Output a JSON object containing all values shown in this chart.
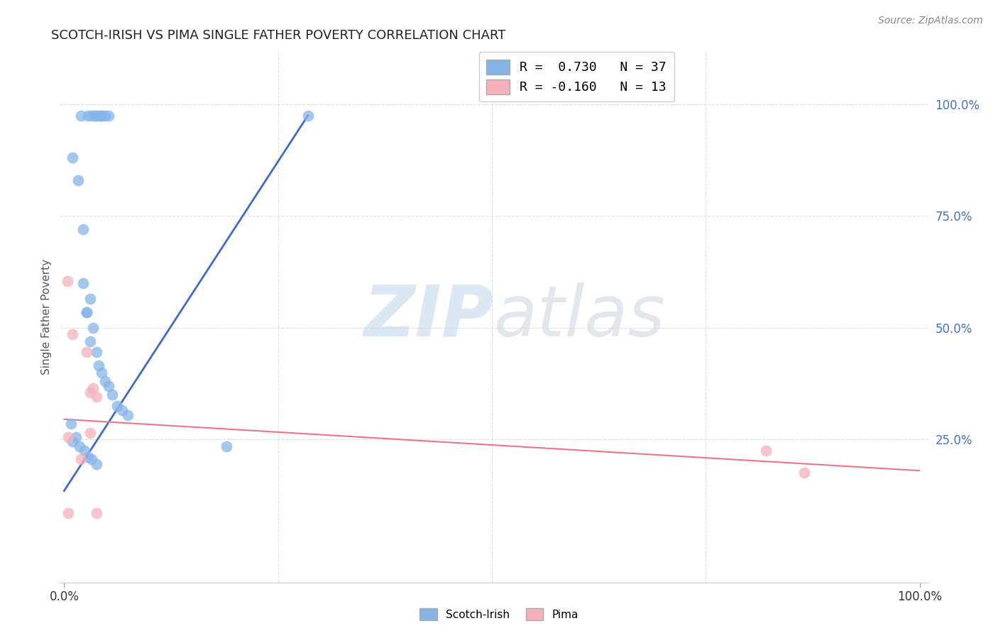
{
  "title": "SCOTCH-IRISH VS PIMA SINGLE FATHER POVERTY CORRELATION CHART",
  "source": "Source: ZipAtlas.com",
  "ylabel": "Single Father Poverty",
  "right_yticks": [
    "100.0%",
    "75.0%",
    "50.0%",
    "25.0%"
  ],
  "right_ytick_vals": [
    1.0,
    0.75,
    0.5,
    0.25
  ],
  "legend_blue": "R =  0.730   N = 37",
  "legend_pink": "R = -0.160   N = 13",
  "scotch_irish_x": [
    0.02,
    0.028,
    0.032,
    0.036,
    0.038,
    0.042,
    0.044,
    0.048,
    0.052,
    0.01,
    0.016,
    0.022,
    0.022,
    0.026,
    0.026,
    0.03,
    0.03,
    0.034,
    0.038,
    0.04,
    0.044,
    0.048,
    0.052,
    0.056,
    0.062,
    0.068,
    0.074,
    0.008,
    0.01,
    0.014,
    0.018,
    0.024,
    0.028,
    0.032,
    0.038,
    0.19,
    0.285
  ],
  "scotch_irish_y": [
    0.975,
    0.975,
    0.975,
    0.975,
    0.975,
    0.975,
    0.975,
    0.975,
    0.975,
    0.88,
    0.83,
    0.72,
    0.6,
    0.535,
    0.535,
    0.565,
    0.47,
    0.5,
    0.445,
    0.415,
    0.4,
    0.38,
    0.37,
    0.35,
    0.325,
    0.315,
    0.305,
    0.285,
    0.245,
    0.255,
    0.235,
    0.225,
    0.21,
    0.205,
    0.195,
    0.235,
    0.975
  ],
  "pima_x": [
    0.004,
    0.01,
    0.02,
    0.026,
    0.03,
    0.034,
    0.038,
    0.03,
    0.005,
    0.005,
    0.82,
    0.865,
    0.038
  ],
  "pima_y": [
    0.605,
    0.485,
    0.205,
    0.445,
    0.355,
    0.365,
    0.345,
    0.265,
    0.255,
    0.085,
    0.225,
    0.175,
    0.085
  ],
  "blue_line_x": [
    0.0,
    0.285
  ],
  "blue_line_y": [
    0.135,
    0.975
  ],
  "pink_line_x": [
    0.0,
    1.0
  ],
  "pink_line_y": [
    0.295,
    0.18
  ],
  "blue_color": "#3d6bca",
  "pink_color": "#e8778a",
  "scatter_blue": "#85b5e8",
  "scatter_pink": "#f5b0bc",
  "watermark_zip": "ZIP",
  "watermark_atlas": "atlas",
  "background": "#ffffff",
  "grid_color": "#e0e0e0",
  "xlim": [
    -0.005,
    1.01
  ],
  "ylim": [
    -0.07,
    1.12
  ]
}
